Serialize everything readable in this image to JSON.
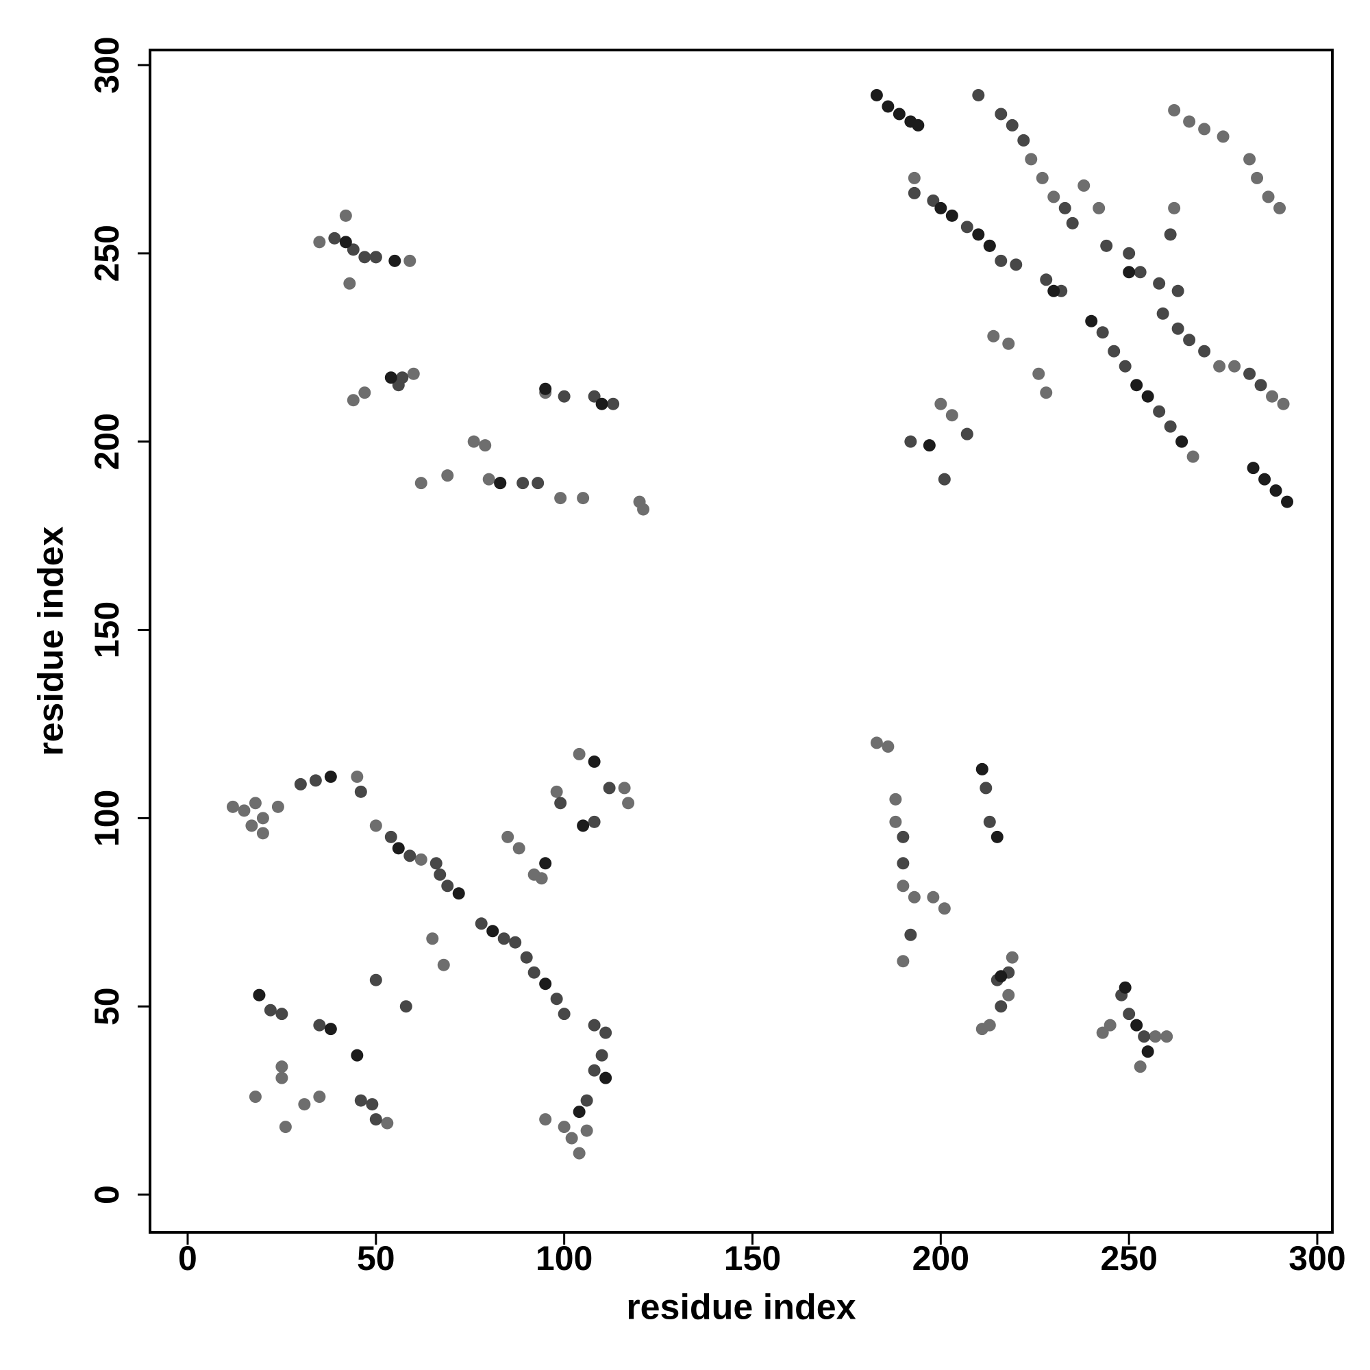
{
  "chart_data": {
    "type": "scatter",
    "xlabel": "residue index",
    "ylabel": "residue index",
    "xlim": [
      -10,
      304
    ],
    "ylim": [
      -10,
      304
    ],
    "xticks": [
      0,
      50,
      100,
      150,
      200,
      250,
      300
    ],
    "yticks": [
      0,
      50,
      100,
      150,
      200,
      250,
      300
    ],
    "series": [
      {
        "color": "#6e6e6e",
        "x": [
          12,
          15,
          18,
          20,
          24,
          17,
          20,
          45,
          50,
          62,
          65,
          68,
          85,
          88,
          92,
          94,
          98,
          104,
          117,
          116,
          19,
          25,
          25,
          31,
          35,
          18,
          26,
          53,
          95,
          100,
          102,
          104,
          106,
          35,
          42,
          43,
          50,
          59,
          44,
          47,
          60,
          95,
          76,
          79,
          80,
          62,
          69,
          99,
          105,
          120,
          121,
          183,
          186,
          188,
          188,
          190,
          193,
          198,
          201,
          190,
          211,
          213,
          219,
          211,
          218,
          243,
          245,
          257,
          260,
          253,
          193,
          200,
          203,
          207,
          238,
          242,
          262,
          214,
          218,
          226,
          228,
          262,
          266,
          270,
          275,
          282,
          284,
          287,
          290,
          274,
          278,
          288,
          291,
          264,
          267,
          224,
          227,
          230
        ],
        "values": [
          103,
          102,
          104,
          100,
          103,
          98,
          96,
          111,
          98,
          89,
          68,
          61,
          95,
          92,
          85,
          84,
          107,
          117,
          104,
          108,
          53,
          34,
          31,
          24,
          26,
          26,
          18,
          19,
          20,
          18,
          15,
          11,
          17,
          253,
          260,
          242,
          249,
          248,
          211,
          213,
          218,
          213,
          200,
          199,
          190,
          189,
          191,
          185,
          185,
          184,
          182,
          120,
          119,
          105,
          99,
          82,
          79,
          79,
          76,
          62,
          113,
          45,
          63,
          44,
          53,
          43,
          45,
          42,
          42,
          34,
          270,
          210,
          207,
          202,
          268,
          262,
          262,
          228,
          226,
          218,
          213,
          288,
          285,
          283,
          281,
          275,
          270,
          265,
          262,
          220,
          220,
          212,
          210,
          200,
          196,
          275,
          270,
          265
        ]
      },
      {
        "color": "#474747",
        "x": [
          30,
          34,
          46,
          54,
          59,
          66,
          67,
          69,
          78,
          84,
          87,
          90,
          98,
          100,
          58,
          50,
          92,
          99,
          108,
          112,
          22,
          25,
          35,
          46,
          49,
          50,
          108,
          110,
          111,
          108,
          106,
          39,
          44,
          47,
          50,
          57,
          56,
          83,
          89,
          93,
          100,
          108,
          113,
          190,
          190,
          192,
          212,
          213,
          215,
          216,
          218,
          248,
          250,
          254,
          193,
          198,
          207,
          213,
          216,
          220,
          228,
          232,
          210,
          216,
          219,
          222,
          233,
          235,
          243,
          246,
          249,
          258,
          261,
          259,
          263,
          266,
          270,
          282,
          285,
          244,
          250,
          253,
          258,
          263,
          261,
          192,
          201,
          207
        ],
        "values": [
          109,
          110,
          107,
          95,
          90,
          88,
          85,
          82,
          72,
          68,
          67,
          63,
          52,
          48,
          50,
          57,
          59,
          104,
          99,
          108,
          49,
          48,
          45,
          25,
          24,
          20,
          45,
          37,
          43,
          33,
          25,
          254,
          251,
          249,
          249,
          217,
          215,
          189,
          189,
          189,
          212,
          212,
          210,
          95,
          88,
          69,
          108,
          99,
          57,
          50,
          59,
          53,
          48,
          42,
          266,
          264,
          257,
          252,
          248,
          247,
          243,
          240,
          292,
          287,
          284,
          280,
          262,
          258,
          229,
          224,
          220,
          208,
          204,
          234,
          230,
          227,
          224,
          218,
          215,
          252,
          250,
          245,
          242,
          240,
          255,
          200,
          190,
          202
        ]
      },
      {
        "color": "#1c1c1c",
        "x": [
          38,
          56,
          72,
          81,
          95,
          95,
          105,
          108,
          19,
          38,
          45,
          111,
          104,
          42,
          55,
          54,
          95,
          110,
          83,
          211,
          215,
          216,
          249,
          252,
          255,
          183,
          186,
          189,
          192,
          194,
          203,
          210,
          213,
          230,
          240,
          252,
          255,
          264,
          283,
          286,
          289,
          292,
          197,
          200,
          250
        ],
        "values": [
          111,
          92,
          80,
          70,
          56,
          88,
          98,
          115,
          53,
          44,
          37,
          31,
          22,
          253,
          248,
          217,
          214,
          210,
          189,
          113,
          95,
          58,
          55,
          45,
          38,
          292,
          289,
          287,
          285,
          284,
          260,
          255,
          252,
          240,
          232,
          215,
          212,
          200,
          193,
          190,
          187,
          184,
          199,
          262,
          245
        ]
      }
    ]
  }
}
